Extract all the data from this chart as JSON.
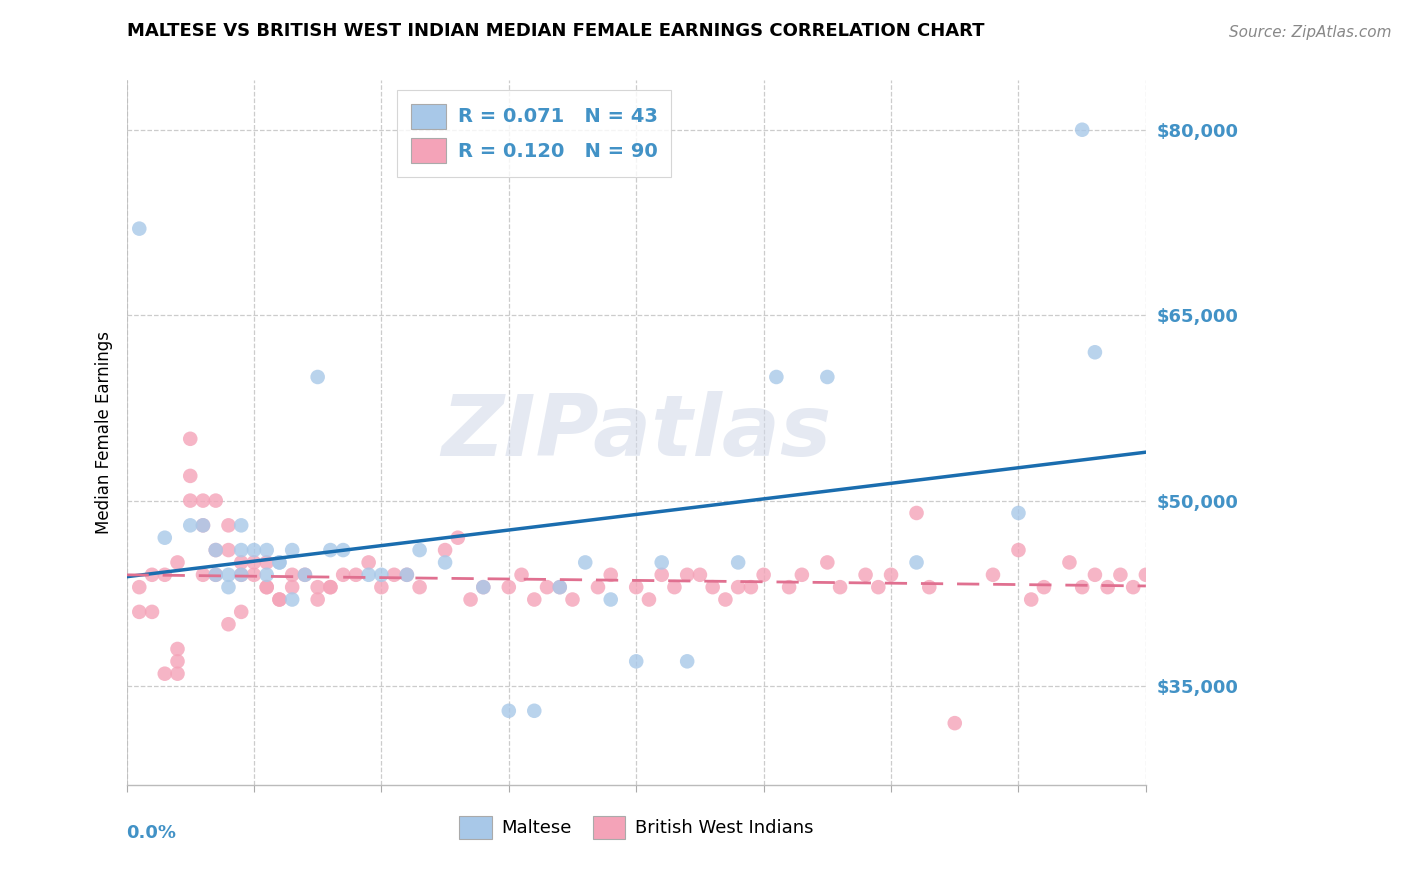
{
  "title": "MALTESE VS BRITISH WEST INDIAN MEDIAN FEMALE EARNINGS CORRELATION CHART",
  "source": "Source: ZipAtlas.com",
  "ylabel": "Median Female Earnings",
  "ytick_vals": [
    35000,
    50000,
    65000,
    80000
  ],
  "xlim": [
    0.0,
    0.08
  ],
  "ylim": [
    27000,
    84000
  ],
  "legend1_R": "0.071",
  "legend1_N": "43",
  "legend2_R": "0.120",
  "legend2_N": "90",
  "color_blue_scatter": "#a8c8e8",
  "color_pink_scatter": "#f4a3b8",
  "color_blue_line": "#1a6daf",
  "color_pink_line": "#e07090",
  "color_blue_text": "#4292c6",
  "watermark_text": "ZIPatlas",
  "watermark_color": "#d0d8e8",
  "label_maltese": "Maltese",
  "label_bwi": "British West Indians",
  "maltese_x": [
    0.001,
    0.003,
    0.005,
    0.006,
    0.007,
    0.007,
    0.008,
    0.008,
    0.009,
    0.009,
    0.009,
    0.01,
    0.011,
    0.011,
    0.012,
    0.012,
    0.013,
    0.013,
    0.014,
    0.015,
    0.016,
    0.017,
    0.019,
    0.02,
    0.022,
    0.023,
    0.025,
    0.028,
    0.03,
    0.032,
    0.034,
    0.036,
    0.038,
    0.04,
    0.042,
    0.044,
    0.048,
    0.051,
    0.055,
    0.062,
    0.07,
    0.075,
    0.076
  ],
  "maltese_y": [
    72000,
    47000,
    48000,
    48000,
    46000,
    44000,
    44000,
    43000,
    48000,
    46000,
    44000,
    46000,
    46000,
    44000,
    45000,
    45000,
    46000,
    42000,
    44000,
    60000,
    46000,
    46000,
    44000,
    44000,
    44000,
    46000,
    45000,
    43000,
    33000,
    33000,
    43000,
    45000,
    42000,
    37000,
    45000,
    37000,
    45000,
    60000,
    60000,
    45000,
    49000,
    80000,
    62000
  ],
  "bwi_x": [
    0.001,
    0.001,
    0.002,
    0.002,
    0.003,
    0.003,
    0.004,
    0.004,
    0.005,
    0.005,
    0.005,
    0.006,
    0.006,
    0.006,
    0.007,
    0.007,
    0.007,
    0.008,
    0.008,
    0.009,
    0.009,
    0.009,
    0.01,
    0.01,
    0.011,
    0.011,
    0.011,
    0.012,
    0.012,
    0.013,
    0.013,
    0.014,
    0.015,
    0.015,
    0.016,
    0.016,
    0.017,
    0.018,
    0.019,
    0.02,
    0.021,
    0.022,
    0.023,
    0.025,
    0.026,
    0.027,
    0.028,
    0.03,
    0.031,
    0.032,
    0.033,
    0.034,
    0.035,
    0.037,
    0.038,
    0.04,
    0.041,
    0.042,
    0.043,
    0.044,
    0.045,
    0.046,
    0.047,
    0.048,
    0.049,
    0.05,
    0.052,
    0.053,
    0.055,
    0.056,
    0.058,
    0.059,
    0.06,
    0.062,
    0.063,
    0.065,
    0.068,
    0.07,
    0.071,
    0.072,
    0.074,
    0.075,
    0.076,
    0.077,
    0.078,
    0.079,
    0.08,
    0.004,
    0.004,
    0.008
  ],
  "bwi_y": [
    43000,
    41000,
    44000,
    41000,
    44000,
    36000,
    45000,
    37000,
    50000,
    55000,
    52000,
    44000,
    50000,
    48000,
    44000,
    46000,
    50000,
    46000,
    48000,
    44000,
    41000,
    45000,
    45000,
    44000,
    43000,
    43000,
    45000,
    42000,
    42000,
    43000,
    44000,
    44000,
    43000,
    42000,
    43000,
    43000,
    44000,
    44000,
    45000,
    43000,
    44000,
    44000,
    43000,
    46000,
    47000,
    42000,
    43000,
    43000,
    44000,
    42000,
    43000,
    43000,
    42000,
    43000,
    44000,
    43000,
    42000,
    44000,
    43000,
    44000,
    44000,
    43000,
    42000,
    43000,
    43000,
    44000,
    43000,
    44000,
    45000,
    43000,
    44000,
    43000,
    44000,
    49000,
    43000,
    32000,
    44000,
    46000,
    42000,
    43000,
    45000,
    43000,
    44000,
    43000,
    44000,
    43000,
    44000,
    36000,
    38000,
    40000
  ]
}
